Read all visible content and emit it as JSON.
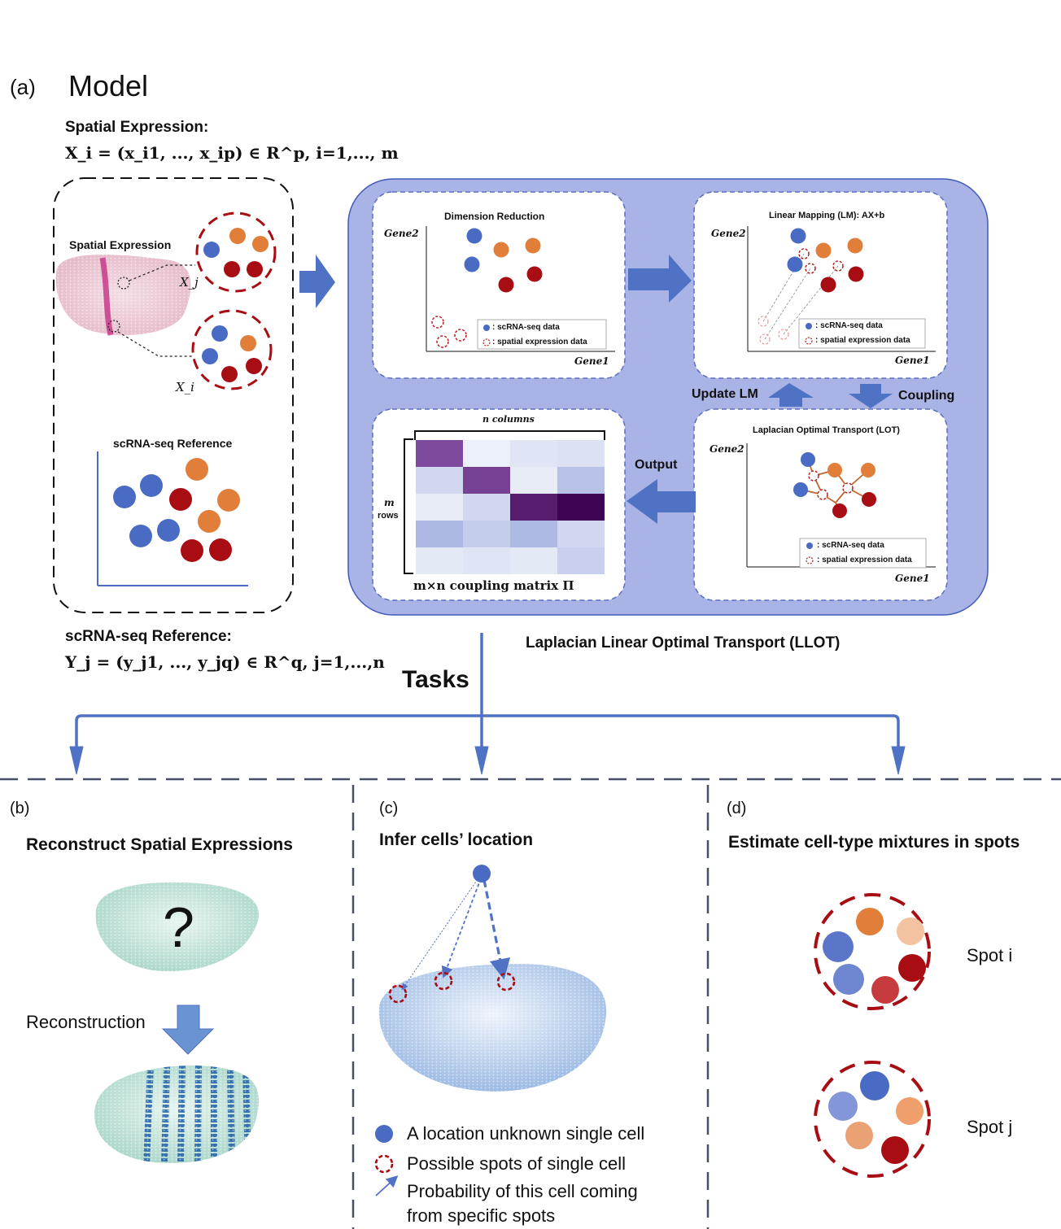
{
  "panel_a": {
    "label": "(a)",
    "title": "Model",
    "spatial_heading": "Spatial Expression:",
    "spatial_formula": "X_i = (x_i1, ..., x_ip) ∈ R^p, i=1,..., m",
    "spatial_box_title": "Spatial Expression",
    "xj_label": "X_j",
    "xi_label": "X_i",
    "scrna_box_title": "scRNA-seq Reference",
    "scrna_heading": "scRNA-seq Reference:",
    "scrna_formula": "Y_j = (y_j1, ..., y_jq) ∈ R^q, j=1,...,n",
    "llot_title": "Laplacian Linear Optimal Transport (LLOT)",
    "dim_reduction": {
      "title": "Dimension Reduction",
      "ylabel": "Gene2",
      "xlabel": "Gene1",
      "legend_sc": ": scRNA-seq data",
      "legend_sp": ": spatial expression data"
    },
    "linear_mapping": {
      "title": "Linear Mapping (LM): AX+b",
      "ylabel": "Gene2",
      "xlabel": "Gene1",
      "legend_sc": ": scRNA-seq data",
      "legend_sp": ": spatial expression data"
    },
    "lot": {
      "title": "Laplacian Optimal Transport (LOT)",
      "ylabel": "Gene2",
      "xlabel": "Gene1",
      "legend_sc": ": scRNA-seq data",
      "legend_sp": ": spatial expression data"
    },
    "update_lm": "Update LM",
    "coupling": "Coupling",
    "output": "Output",
    "matrix": {
      "columns_label": "n columns",
      "rows_label_m": "m",
      "rows_label": "rows",
      "caption": "m×n coupling matrix Π",
      "values": [
        [
          0.55,
          0.02,
          0.08,
          0.1
        ],
        [
          0.16,
          0.6,
          0.04,
          0.28
        ],
        [
          0.04,
          0.16,
          0.82,
          0.98
        ],
        [
          0.34,
          0.22,
          0.33,
          0.16
        ],
        [
          0.06,
          0.08,
          0.06,
          0.2
        ]
      ]
    }
  },
  "tasks_label": "Tasks",
  "panel_b": {
    "label": "(b)",
    "title": "Reconstruct Spatial Expressions",
    "question": "?",
    "reconstruction_label": "Reconstruction"
  },
  "panel_c": {
    "label": "(c)",
    "title": "Infer cells’ location",
    "legend_cell": "A location unknown single cell",
    "legend_spots": "Possible spots of single cell",
    "legend_prob_1": "Probability of this cell coming",
    "legend_prob_2": "from specific spots"
  },
  "panel_d": {
    "label": "(d)",
    "title": "Estimate cell-type mixtures in spots",
    "spot_i": "Spot i",
    "spot_j": "Spot j"
  },
  "colors": {
    "blue_cell": "#4a6bc4",
    "orange_cell": "#e07e3a",
    "red_cell": "#a80d13",
    "panel_bg": "#aab3e6",
    "arrow_blue": "#4f72c4",
    "dashed_red": "#b51c1c",
    "embryo_teal": "#a9d6c9",
    "stripe_blue": "#1f5fa6"
  }
}
